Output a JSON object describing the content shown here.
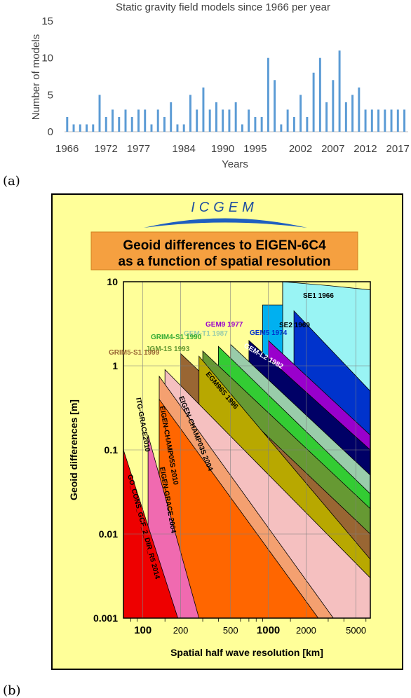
{
  "panel_a": {
    "label": "(a)",
    "chart_data": {
      "type": "bar",
      "title": "Static gravity field models since 1966 per year",
      "xlabel": "Years",
      "ylabel": "Number of models",
      "x_tick_labels": [
        "1966",
        "1972",
        "1977",
        "1984",
        "1990",
        "1995",
        "2002",
        "2007",
        "2012",
        "2017"
      ],
      "x_tick_years": [
        1966,
        1972,
        1977,
        1984,
        1990,
        1995,
        2002,
        2007,
        2012,
        2017
      ],
      "y_ticks": [
        0,
        5,
        10,
        15
      ],
      "ylim": [
        0,
        15
      ],
      "bar_color": "#5b9bd5",
      "years": [
        1966,
        1967,
        1968,
        1969,
        1970,
        1971,
        1972,
        1973,
        1974,
        1975,
        1976,
        1977,
        1978,
        1979,
        1980,
        1981,
        1982,
        1983,
        1984,
        1985,
        1986,
        1987,
        1988,
        1989,
        1990,
        1991,
        1992,
        1993,
        1994,
        1995,
        1996,
        1997,
        1998,
        1999,
        2000,
        2001,
        2002,
        2003,
        2004,
        2005,
        2006,
        2007,
        2008,
        2009,
        2010,
        2011,
        2012,
        2013,
        2014,
        2015,
        2016,
        2017,
        2018
      ],
      "values": [
        2,
        1,
        1,
        1,
        1,
        5,
        2,
        3,
        2,
        3,
        2,
        3,
        3,
        1,
        3,
        2,
        4,
        1,
        1,
        5,
        3,
        6,
        3,
        4,
        3,
        3,
        4,
        1,
        3,
        2,
        2,
        10,
        7,
        1,
        3,
        2,
        5,
        2,
        8,
        10,
        4,
        7,
        11,
        4,
        5,
        6,
        3,
        3,
        3,
        3,
        3,
        3,
        3
      ]
    }
  },
  "panel_b": {
    "label": "(b)",
    "logo_text": "ICGEM",
    "title_line1": "Geoid differences to EIGEN-6C4",
    "title_line2": "as a function of spatial resolution",
    "chart_data": {
      "type": "area",
      "xlabel": "Spatial half wave resolution [km]",
      "ylabel": "Geoid differences [m]",
      "x_scale": "log",
      "y_scale": "log",
      "xlim": [
        70,
        6500
      ],
      "ylim": [
        0.001,
        10
      ],
      "x_tick_labels": [
        "100",
        "200",
        "500",
        "1000",
        "2000",
        "5000"
      ],
      "x_tick_values": [
        100,
        200,
        500,
        1000,
        2000,
        5000
      ],
      "y_tick_labels": [
        "10",
        "1",
        "0.1",
        "0.01",
        "0.001"
      ],
      "y_tick_values": [
        10,
        1,
        0.1,
        0.01,
        0.001
      ],
      "series": [
        {
          "name": "SE1 1966",
          "color": "#99f4f4",
          "start_km": 1300,
          "top": [
            [
              1300,
              10
            ],
            [
              3000,
              9
            ],
            [
              6500,
              8
            ]
          ],
          "bottom": [
            [
              1300,
              10
            ],
            [
              3000,
              3
            ],
            [
              6500,
              0.5
            ]
          ]
        },
        {
          "name": "SE2 1969",
          "color": "#00b0f0",
          "start_km": 900,
          "top": [
            [
              900,
              5.3
            ],
            [
              1300,
              5.3
            ],
            [
              1300,
              10
            ]
          ],
          "bottom": [
            [
              900,
              5.3
            ],
            [
              3000,
              0.8
            ],
            [
              6500,
              0.15
            ]
          ]
        },
        {
          "name": "GEM5 1974",
          "color": "#0033cc",
          "start_km": 1600,
          "top": [
            [
              1600,
              4.5
            ],
            [
              6500,
              0.5
            ]
          ],
          "bottom": [
            [
              6500,
              0.08
            ]
          ]
        },
        {
          "name": "GEM9 1977",
          "color": "#9900cc",
          "start_km": 1000,
          "top": [
            [
              1000,
              2
            ],
            [
              6500,
              0.15
            ]
          ],
          "bottom": [
            [
              6500,
              0.02
            ]
          ]
        },
        {
          "name": "GEM-L2 1982",
          "color": "#000066",
          "start_km": 700,
          "top": [
            [
              700,
              2
            ],
            [
              6500,
              0.1
            ]
          ],
          "bottom": [
            [
              6500,
              0.02
            ]
          ]
        },
        {
          "name": "GEM-T1 1987",
          "color": "#99ccaa",
          "start_km": 500,
          "top": [
            [
              500,
              1.8
            ],
            [
              6500,
              0.05
            ]
          ],
          "bottom": [
            [
              6500,
              0.025
            ]
          ]
        },
        {
          "name": "GRIM4-S1 1990",
          "color": "#33cc33",
          "start_km": 400,
          "top": [
            [
              400,
              1.7
            ],
            [
              6500,
              0.03
            ]
          ],
          "bottom": [
            [
              6500,
              0.018
            ]
          ]
        },
        {
          "name": "JGM-1S 1993",
          "color": "#669933",
          "start_km": 300,
          "top": [
            [
              300,
              1.5
            ],
            [
              6500,
              0.02
            ]
          ],
          "bottom": [
            [
              6500,
              0.011
            ]
          ]
        },
        {
          "name": "GRIM5-S1 1999",
          "color": "#996633",
          "start_km": 200,
          "top": [
            [
              200,
              1.4
            ],
            [
              6500,
              0.01
            ]
          ],
          "bottom": [
            [
              6500,
              0.004
            ]
          ]
        },
        {
          "name": "EGM96S 1996",
          "color": "#b8a800",
          "start_km": 280,
          "top": [
            [
              280,
              1.3
            ],
            [
              6500,
              0.005
            ]
          ],
          "bottom": [
            [
              6500,
              0.0015
            ]
          ]
        },
        {
          "name": "EIGEN-CHAMP03S 2004",
          "color": "#f5c0c0",
          "start_km": 150,
          "top": [
            [
              150,
              0.9
            ],
            [
              6500,
              0.003
            ]
          ],
          "bottom": [
            [
              6500,
              0.001
            ]
          ]
        },
        {
          "name": "EIGEN-CHAMP05S 2010",
          "color": "#f4a070",
          "start_km": 135,
          "top": [
            [
              135,
              0.75
            ],
            [
              3300,
              0.001
            ]
          ],
          "bottom": [
            [
              3300,
              0.001
            ]
          ]
        },
        {
          "name": "EIGEN-GRACE 2004",
          "color": "#ff6600",
          "start_km": 135,
          "top": [
            [
              135,
              0.4
            ],
            [
              2500,
              0.001
            ]
          ],
          "bottom": [
            [
              2500,
              0.001
            ]
          ]
        },
        {
          "name": "ITG-GRACE2010",
          "color": "#f06ab0",
          "start_km": 110,
          "top": [
            [
              110,
              0.15
            ],
            [
              280,
              0.001
            ]
          ],
          "bottom": [
            [
              280,
              0.001
            ]
          ]
        },
        {
          "name": "GO_CONS_GCF_2_DIR_R5 2014",
          "color": "#ee0000",
          "start_km": 70,
          "top": [
            [
              70,
              0.1
            ],
            [
              190,
              0.001
            ]
          ],
          "bottom": [
            [
              190,
              0.001
            ]
          ]
        }
      ],
      "labels": [
        {
          "text": "SE1  1966",
          "color": "#000000"
        },
        {
          "text": "SE2  1969",
          "color": "#000000"
        },
        {
          "text": "GEM5  1974",
          "color": "#0033cc"
        },
        {
          "text": "GEM9   1977",
          "color": "#9900cc"
        },
        {
          "text": "GEM-L2  1982",
          "color": "#ffffff"
        },
        {
          "text": "GEM-T1   1987",
          "color": "#99ccaa"
        },
        {
          "text": "GRIM4-S1  1990",
          "color": "#33aa33"
        },
        {
          "text": "JGM-1S    1993",
          "color": "#669933"
        },
        {
          "text": "GRIM5-S1   1999",
          "color": "#996633"
        },
        {
          "text": "EGM96S   1996",
          "color": "#000000"
        },
        {
          "text": "EIGEN-CHAMP03S  2004",
          "color": "#000000"
        },
        {
          "text": "EIGEN-CHAMP05S  2010",
          "color": "#000000"
        },
        {
          "text": "EIGEN-GRACE  2004",
          "color": "#000000"
        },
        {
          "text": "ITG-GRACE2010",
          "color": "#000000"
        },
        {
          "text": "GO_CONS_GCF_2_DIR_R5  2014",
          "color": "#000000"
        }
      ]
    }
  }
}
